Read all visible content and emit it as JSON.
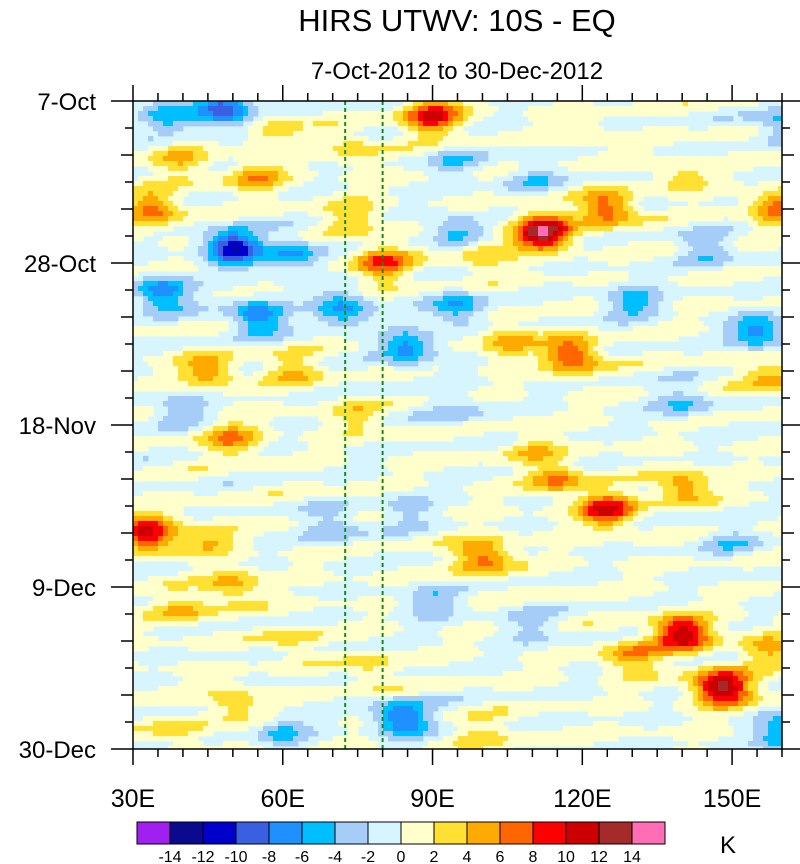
{
  "chart_data": {
    "type": "heatmap",
    "title": "HIRS UTWV: 10S - EQ",
    "subtitle": "7-Oct-2012 to 30-Dec-2012",
    "x_axis": {
      "range": [
        30,
        160
      ],
      "tick_values": [
        30,
        60,
        90,
        120,
        150
      ],
      "tick_labels": [
        "30E",
        "60E",
        "90E",
        "120E",
        "150E"
      ]
    },
    "y_axis": {
      "range_days": [
        0,
        84
      ],
      "tick_values": [
        0,
        21,
        42,
        63,
        84
      ],
      "tick_labels": [
        "7-Oct",
        "28-Oct",
        "18-Nov",
        "9-Dec",
        "30-Dec"
      ],
      "minor_tick_step_days": 7
    },
    "reference_lines_longitude": [
      72.5,
      80
    ],
    "reference_line_color": "#1a8a1a",
    "colorbar": {
      "unit_label": "K",
      "levels": [
        -14,
        -12,
        -10,
        -8,
        -6,
        -4,
        -2,
        0,
        2,
        4,
        6,
        8,
        10,
        12,
        14
      ],
      "level_labels": [
        "-14",
        "-12",
        "-10",
        "-8",
        "-6",
        "-4",
        "-2",
        "0",
        "2",
        "4",
        "6",
        "8",
        "10",
        "12",
        "14"
      ],
      "colors": [
        "#a020f0",
        "#0a0a8f",
        "#0000cd",
        "#3a5fe0",
        "#1e90ff",
        "#00bfff",
        "#a6cdf7",
        "#d6f5ff",
        "#ffffcc",
        "#ffe033",
        "#ffaa00",
        "#ff6600",
        "#ff0000",
        "#cc0000",
        "#a52a2a",
        "#ff6eb4"
      ]
    },
    "features": [
      {
        "lon": 37,
        "day": 2,
        "value": -5
      },
      {
        "lon": 48,
        "day": 1,
        "value": -10
      },
      {
        "lon": 58,
        "day": 4,
        "value": 3
      },
      {
        "lon": 40,
        "day": 8,
        "value": 4
      },
      {
        "lon": 55,
        "day": 10,
        "value": 5
      },
      {
        "lon": 74,
        "day": 6,
        "value": 3
      },
      {
        "lon": 90,
        "day": 2,
        "value": 10
      },
      {
        "lon": 95,
        "day": 8,
        "value": -3
      },
      {
        "lon": 110,
        "day": 10,
        "value": -3
      },
      {
        "lon": 140,
        "day": 10,
        "value": 3
      },
      {
        "lon": 120,
        "day": 4,
        "value": 2
      },
      {
        "lon": 160,
        "day": 3,
        "value": -5
      },
      {
        "lon": 112,
        "day": 17,
        "value": 14
      },
      {
        "lon": 125,
        "day": 14,
        "value": 8
      },
      {
        "lon": 100,
        "day": 20,
        "value": 4
      },
      {
        "lon": 159,
        "day": 14,
        "value": 7
      },
      {
        "lon": 50,
        "day": 19,
        "value": -12
      },
      {
        "lon": 62,
        "day": 20,
        "value": -6
      },
      {
        "lon": 80,
        "day": 21,
        "value": 8
      },
      {
        "lon": 74,
        "day": 15,
        "value": 4
      },
      {
        "lon": 34,
        "day": 14,
        "value": 7
      },
      {
        "lon": 95,
        "day": 17,
        "value": -5
      },
      {
        "lon": 145,
        "day": 19,
        "value": -4
      },
      {
        "lon": 36,
        "day": 25,
        "value": -8
      },
      {
        "lon": 55,
        "day": 28,
        "value": -8
      },
      {
        "lon": 72,
        "day": 27,
        "value": -7
      },
      {
        "lon": 95,
        "day": 27,
        "value": -6
      },
      {
        "lon": 130,
        "day": 26,
        "value": -5
      },
      {
        "lon": 155,
        "day": 30,
        "value": -7
      },
      {
        "lon": 118,
        "day": 33,
        "value": 9
      },
      {
        "lon": 105,
        "day": 31,
        "value": 5
      },
      {
        "lon": 85,
        "day": 32,
        "value": -7
      },
      {
        "lon": 45,
        "day": 35,
        "value": 6
      },
      {
        "lon": 62,
        "day": 35,
        "value": 4
      },
      {
        "lon": 40,
        "day": 40,
        "value": -4
      },
      {
        "lon": 75,
        "day": 41,
        "value": 3
      },
      {
        "lon": 95,
        "day": 40,
        "value": -3
      },
      {
        "lon": 140,
        "day": 39,
        "value": -4
      },
      {
        "lon": 158,
        "day": 36,
        "value": 5
      },
      {
        "lon": 50,
        "day": 44,
        "value": 6
      },
      {
        "lon": 110,
        "day": 45,
        "value": 3
      },
      {
        "lon": 125,
        "day": 53,
        "value": 10
      },
      {
        "lon": 140,
        "day": 50,
        "value": 6
      },
      {
        "lon": 115,
        "day": 49,
        "value": 6
      },
      {
        "lon": 33,
        "day": 56,
        "value": 11
      },
      {
        "lon": 45,
        "day": 57,
        "value": 4
      },
      {
        "lon": 70,
        "day": 55,
        "value": -4
      },
      {
        "lon": 85,
        "day": 53,
        "value": -3
      },
      {
        "lon": 100,
        "day": 59,
        "value": 8
      },
      {
        "lon": 150,
        "day": 57,
        "value": -3
      },
      {
        "lon": 50,
        "day": 63,
        "value": 5
      },
      {
        "lon": 40,
        "day": 66,
        "value": 4
      },
      {
        "lon": 62,
        "day": 70,
        "value": 3
      },
      {
        "lon": 90,
        "day": 65,
        "value": -4
      },
      {
        "lon": 110,
        "day": 68,
        "value": -3
      },
      {
        "lon": 140,
        "day": 69,
        "value": 12
      },
      {
        "lon": 148,
        "day": 76,
        "value": 14
      },
      {
        "lon": 130,
        "day": 72,
        "value": 6
      },
      {
        "lon": 157,
        "day": 71,
        "value": 5
      },
      {
        "lon": 78,
        "day": 74,
        "value": 3
      },
      {
        "lon": 50,
        "day": 78,
        "value": 4
      },
      {
        "lon": 84,
        "day": 80,
        "value": -9
      },
      {
        "lon": 60,
        "day": 82,
        "value": -4
      },
      {
        "lon": 40,
        "day": 82,
        "value": 3
      },
      {
        "lon": 100,
        "day": 82,
        "value": 3
      },
      {
        "lon": 160,
        "day": 82,
        "value": -6
      }
    ]
  }
}
